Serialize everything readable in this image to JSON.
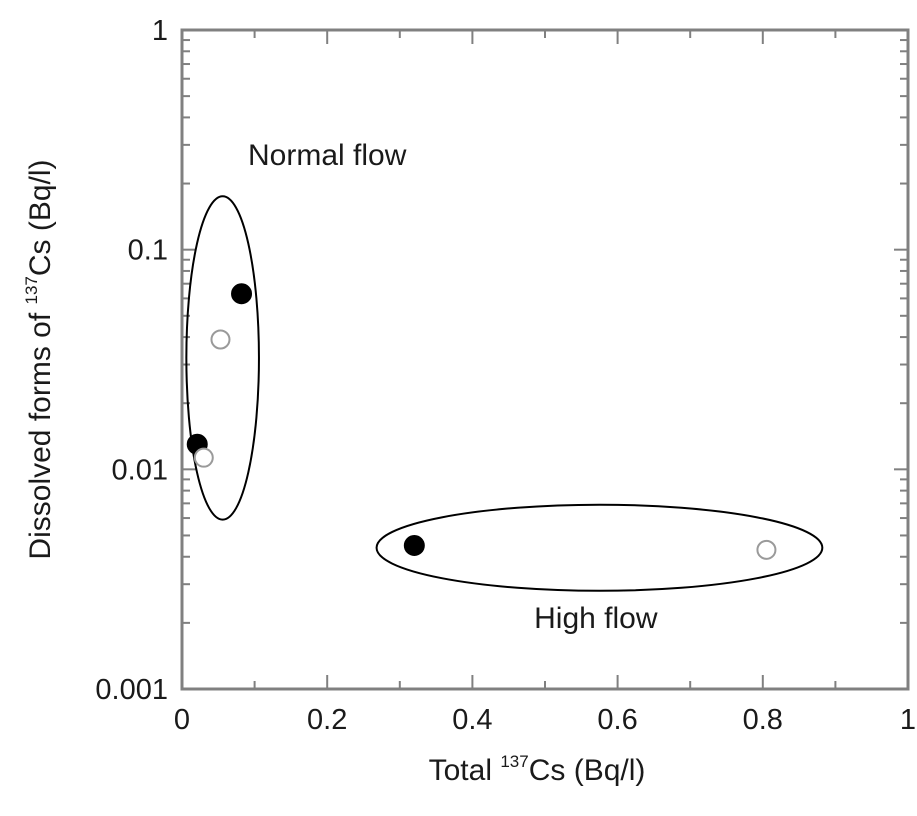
{
  "chart_data": {
    "type": "scatter",
    "xlabel": {
      "prefix": "Total ",
      "sup": "137",
      "suffix": "Cs (Bq/l)"
    },
    "ylabel": {
      "prefix": "Dissolved forms of ",
      "sup": "137",
      "suffix": "Cs (Bq/l)"
    },
    "xlim": [
      0,
      1
    ],
    "ylim": [
      0.001,
      1
    ],
    "yscale": "log",
    "x_ticks": [
      0,
      0.2,
      0.4,
      0.6,
      0.8,
      1
    ],
    "x_tick_labels": [
      "0",
      "0.2",
      "0.4",
      "0.6",
      "0.8",
      "1"
    ],
    "y_ticks": [
      0.001,
      0.01,
      0.1,
      1
    ],
    "y_tick_labels": [
      "0.001",
      "0.01",
      "0.1",
      "1"
    ],
    "grid": false,
    "series": [
      {
        "marker": "filled-circle",
        "color": "#000000",
        "points": [
          {
            "x": 0.082,
            "y": 0.063
          },
          {
            "x": 0.021,
            "y": 0.013
          },
          {
            "x": 0.32,
            "y": 0.0045
          }
        ]
      },
      {
        "marker": "open-circle",
        "color": "#9a9a9a",
        "points": [
          {
            "x": 0.053,
            "y": 0.039
          },
          {
            "x": 0.03,
            "y": 0.0113
          },
          {
            "x": 0.805,
            "y": 0.0043
          }
        ]
      }
    ],
    "annotations": [
      {
        "text": "Normal flow",
        "x": 0.2,
        "y": 0.27
      },
      {
        "text": "High flow",
        "x": 0.57,
        "y": 0.0021
      }
    ],
    "groups": [
      {
        "label": "Normal flow",
        "cx": 0.056,
        "cy": 0.033,
        "rx_data": 0.05,
        "y_top": 0.175,
        "y_bottom": 0.0059
      },
      {
        "label": "High flow",
        "cx": 0.575,
        "cy": 0.0044,
        "rx_data": 0.307,
        "y_top": 0.0069,
        "y_bottom": 0.0028
      }
    ]
  }
}
